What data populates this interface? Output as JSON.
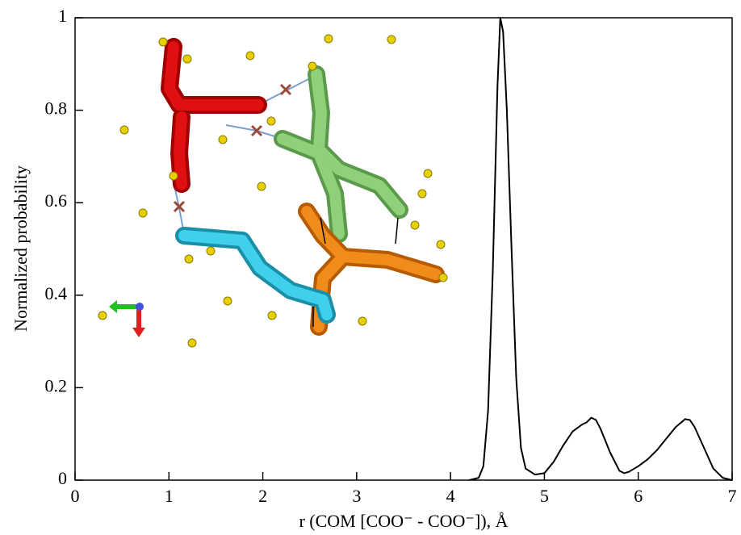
{
  "chart_data": {
    "type": "line",
    "xlabel": "r (COM [COO⁻ - COO⁻]), Å",
    "ylabel": "Normalized probability",
    "x": [
      4.2,
      4.3,
      4.35,
      4.4,
      4.45,
      4.5,
      4.53,
      4.56,
      4.6,
      4.65,
      4.7,
      4.75,
      4.8,
      4.9,
      5.0,
      5.1,
      5.2,
      5.3,
      5.4,
      5.45,
      5.5,
      5.55,
      5.6,
      5.7,
      5.8,
      5.85,
      5.9,
      6.0,
      6.1,
      6.2,
      6.3,
      6.4,
      6.5,
      6.55,
      6.6,
      6.7,
      6.8,
      6.9,
      7.0
    ],
    "series": [
      {
        "color": "#000000",
        "values": [
          0,
          0.005,
          0.03,
          0.15,
          0.45,
          0.85,
          1.0,
          0.97,
          0.8,
          0.5,
          0.22,
          0.07,
          0.025,
          0.012,
          0.015,
          0.04,
          0.075,
          0.105,
          0.12,
          0.125,
          0.135,
          0.13,
          0.11,
          0.06,
          0.02,
          0.015,
          0.018,
          0.03,
          0.045,
          0.065,
          0.09,
          0.115,
          0.132,
          0.13,
          0.115,
          0.07,
          0.025,
          0.005,
          0
        ]
      }
    ],
    "xlim": [
      0,
      7
    ],
    "xticks": [
      0,
      1,
      2,
      3,
      4,
      5,
      6,
      7
    ],
    "ylim": [
      0,
      1
    ],
    "yticks": [
      0,
      0.2,
      0.4,
      0.6,
      0.8,
      1
    ]
  }
}
